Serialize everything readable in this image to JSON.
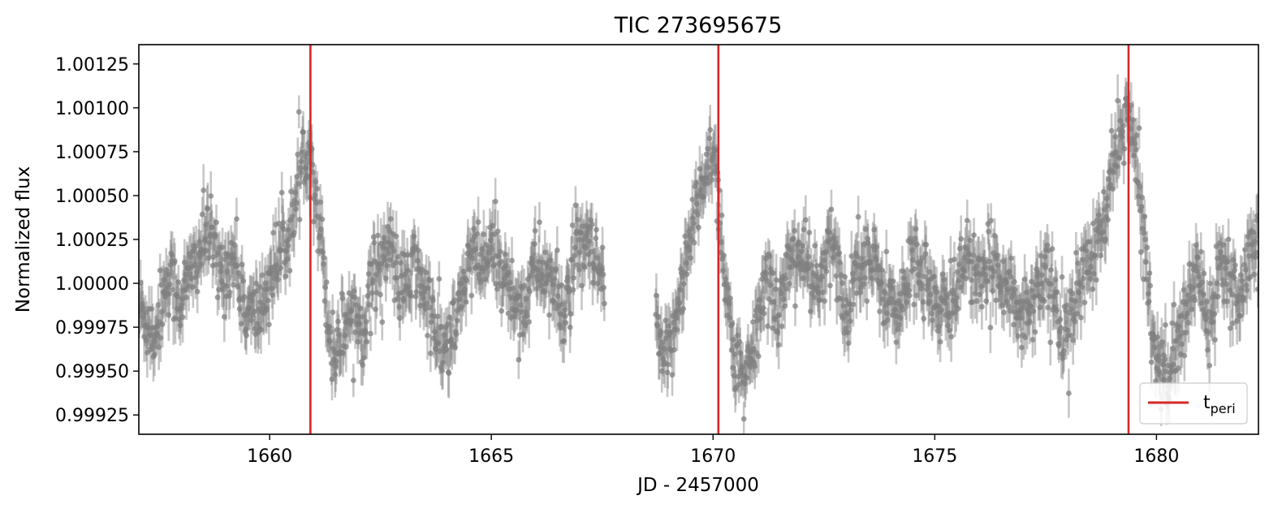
{
  "chart_data": {
    "type": "scatter",
    "title": "TIC 273695675",
    "xlabel": "JD - 2457000",
    "ylabel": "Normalized flux",
    "xlim": [
      1657.05,
      1682.3
    ],
    "ylim": [
      0.99914,
      1.00136
    ],
    "x_ticks": [
      1660,
      1665,
      1670,
      1675,
      1680
    ],
    "x_tick_labels": [
      "1660",
      "1665",
      "1670",
      "1675",
      "1680"
    ],
    "y_ticks": [
      0.99925,
      0.9995,
      0.99975,
      1.0,
      1.00025,
      1.0005,
      1.00075,
      1.001,
      1.00125
    ],
    "y_tick_labels": [
      "0.99925",
      "0.99950",
      "0.99975",
      "1.00000",
      "1.00025",
      "1.00050",
      "1.00075",
      "1.00100",
      "1.00125"
    ],
    "grid": false,
    "legend": {
      "placement": "lower-right",
      "base": "t",
      "sub": "peri"
    },
    "colors": {
      "points": "#808080",
      "tperi": "#d62728"
    },
    "tperi": [
      1660.92,
      1670.12,
      1679.37
    ],
    "data_gap": [
      1667.55,
      1668.7
    ],
    "series": [
      {
        "x": [
          1657.1,
          1657.4,
          1657.7,
          1658.0,
          1658.3,
          1658.6,
          1658.9,
          1659.2,
          1659.5,
          1659.8,
          1660.1,
          1660.4,
          1660.6,
          1660.8,
          1660.92,
          1661.05,
          1661.2,
          1661.4,
          1661.6,
          1661.8,
          1662.1,
          1662.4,
          1662.7,
          1663.0,
          1663.3,
          1663.6,
          1663.9,
          1664.2,
          1664.5,
          1664.8,
          1665.1,
          1665.4,
          1665.7,
          1666.0,
          1666.3,
          1666.6,
          1666.9,
          1667.2,
          1667.5,
          1668.75,
          1668.95,
          1669.2,
          1669.45,
          1669.7,
          1669.9,
          1670.05,
          1670.15,
          1670.3,
          1670.5,
          1670.7,
          1670.9,
          1671.2,
          1671.5,
          1671.8,
          1672.1,
          1672.4,
          1672.7,
          1673.0,
          1673.3,
          1673.6,
          1673.9,
          1674.2,
          1674.5,
          1674.8,
          1675.1,
          1675.4,
          1675.7,
          1676.0,
          1676.3,
          1676.6,
          1676.9,
          1677.2,
          1677.5,
          1677.8,
          1678.1,
          1678.4,
          1678.7,
          1678.9,
          1679.1,
          1679.3,
          1679.45,
          1679.6,
          1679.8,
          1680.0,
          1680.3,
          1680.6,
          1680.9,
          1681.2,
          1681.5,
          1681.8,
          1682.1
        ],
        "y": [
          0.99985,
          0.9997,
          1.00005,
          0.9999,
          1.0001,
          1.0003,
          1.00005,
          1.00015,
          0.9998,
          0.99985,
          1.0001,
          1.00025,
          1.00045,
          1.0008,
          1.00075,
          1.0005,
          1.00015,
          0.9996,
          0.9997,
          0.99985,
          0.99975,
          1.0001,
          1.0002,
          0.99995,
          1.0001,
          0.99985,
          0.9996,
          0.99975,
          1.00015,
          1.0001,
          1.0002,
          0.99995,
          0.99985,
          1.0001,
          1.00005,
          0.9998,
          1.00015,
          1.0002,
          1.0,
          0.9997,
          0.9995,
          0.9999,
          1.0002,
          1.0005,
          1.00075,
          1.0007,
          1.0004,
          0.99995,
          0.99955,
          0.9994,
          0.9996,
          1.00005,
          0.99985,
          1.0002,
          1.0001,
          0.99995,
          1.00025,
          0.9998,
          1.0002,
          1.0001,
          0.99995,
          0.9998,
          1.00015,
          1.00005,
          0.9998,
          0.9999,
          1.0002,
          0.99995,
          1.0001,
          1.00005,
          0.9998,
          0.9999,
          1.0001,
          0.99975,
          0.9998,
          1.0001,
          1.0002,
          1.00045,
          1.0008,
          1.00095,
          1.00085,
          1.00055,
          1.00005,
          0.99955,
          0.9995,
          0.99975,
          1.0001,
          0.9998,
          1.0002,
          0.9999,
          1.0002
        ]
      }
    ]
  }
}
